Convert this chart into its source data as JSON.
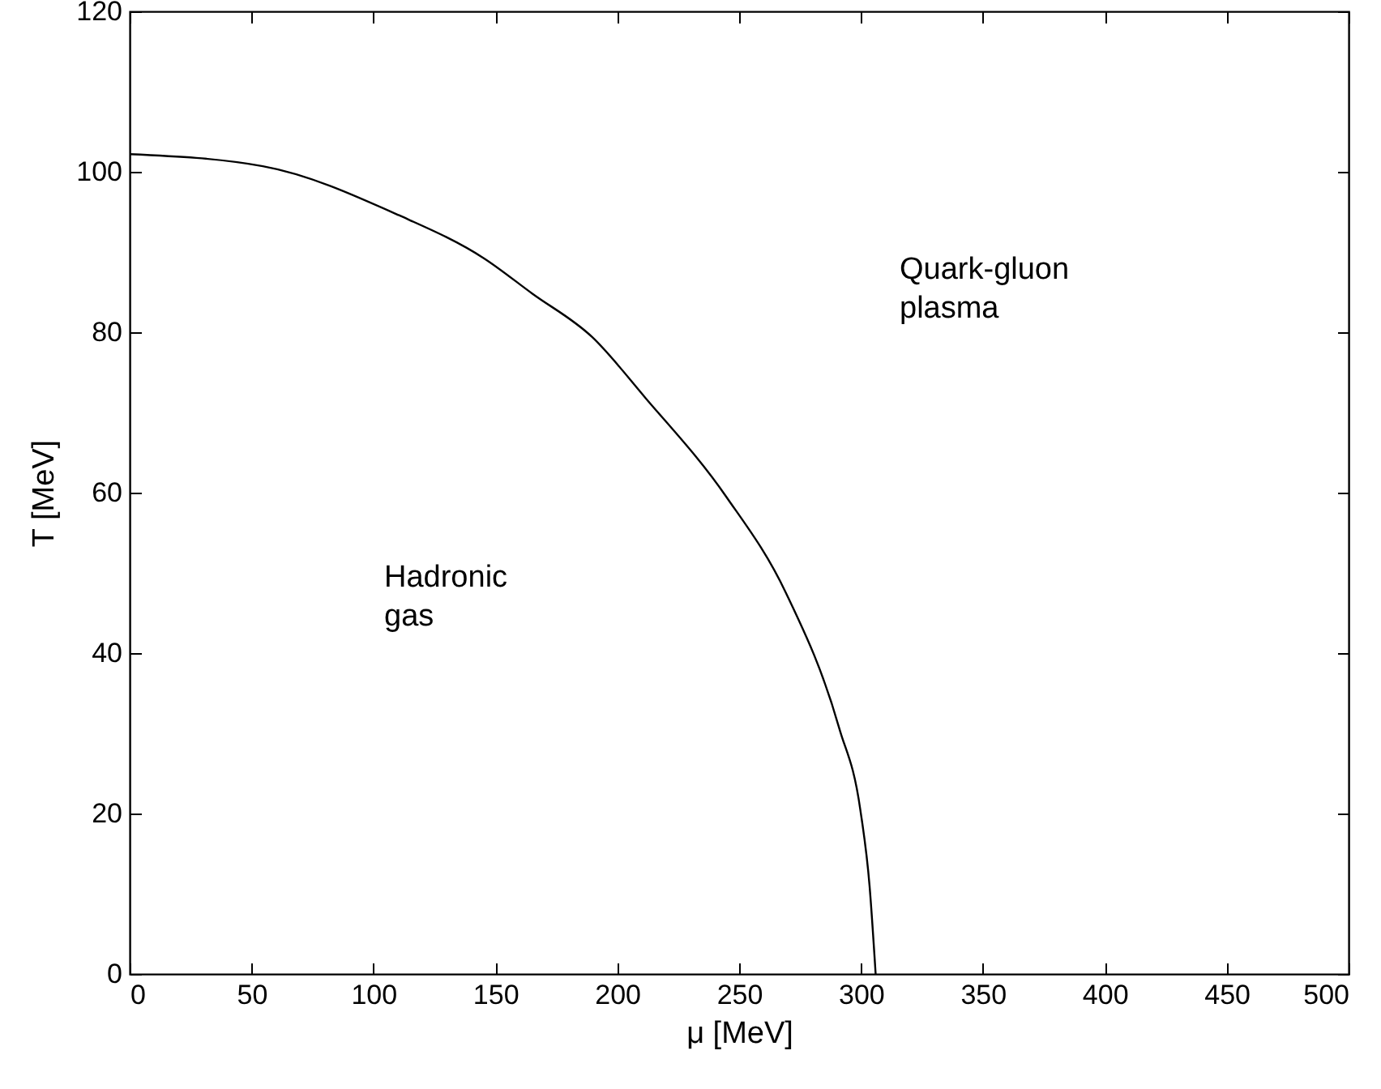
{
  "chart_data": {
    "type": "line",
    "xlabel": "μ [MeV]",
    "ylabel": "T [MeV]",
    "x": [
      0,
      54.6,
      110.3,
      145.4,
      165.2,
      189.7,
      211.6,
      244.7,
      269.2,
      291.1,
      299.7,
      303.5,
      306
    ],
    "series": [
      {
        "color": "#000000",
        "values": [
          102.2,
          100.7,
          94.6,
          89.2,
          84.8,
          79.4,
          71.8,
          59.5,
          47.5,
          30.6,
          20.5,
          11,
          0
        ]
      }
    ],
    "xlim": [
      0,
      500
    ],
    "xticks": [
      0,
      50,
      100,
      150,
      200,
      250,
      300,
      350,
      400,
      450,
      500
    ],
    "ylim": [
      0,
      120
    ],
    "yticks": [
      0,
      20,
      40,
      60,
      80,
      100,
      120
    ],
    "grid": false,
    "marker": "none",
    "line_style": "solid",
    "annotations": [
      "Hadronic gas",
      "Quark-gluon plasma"
    ]
  }
}
